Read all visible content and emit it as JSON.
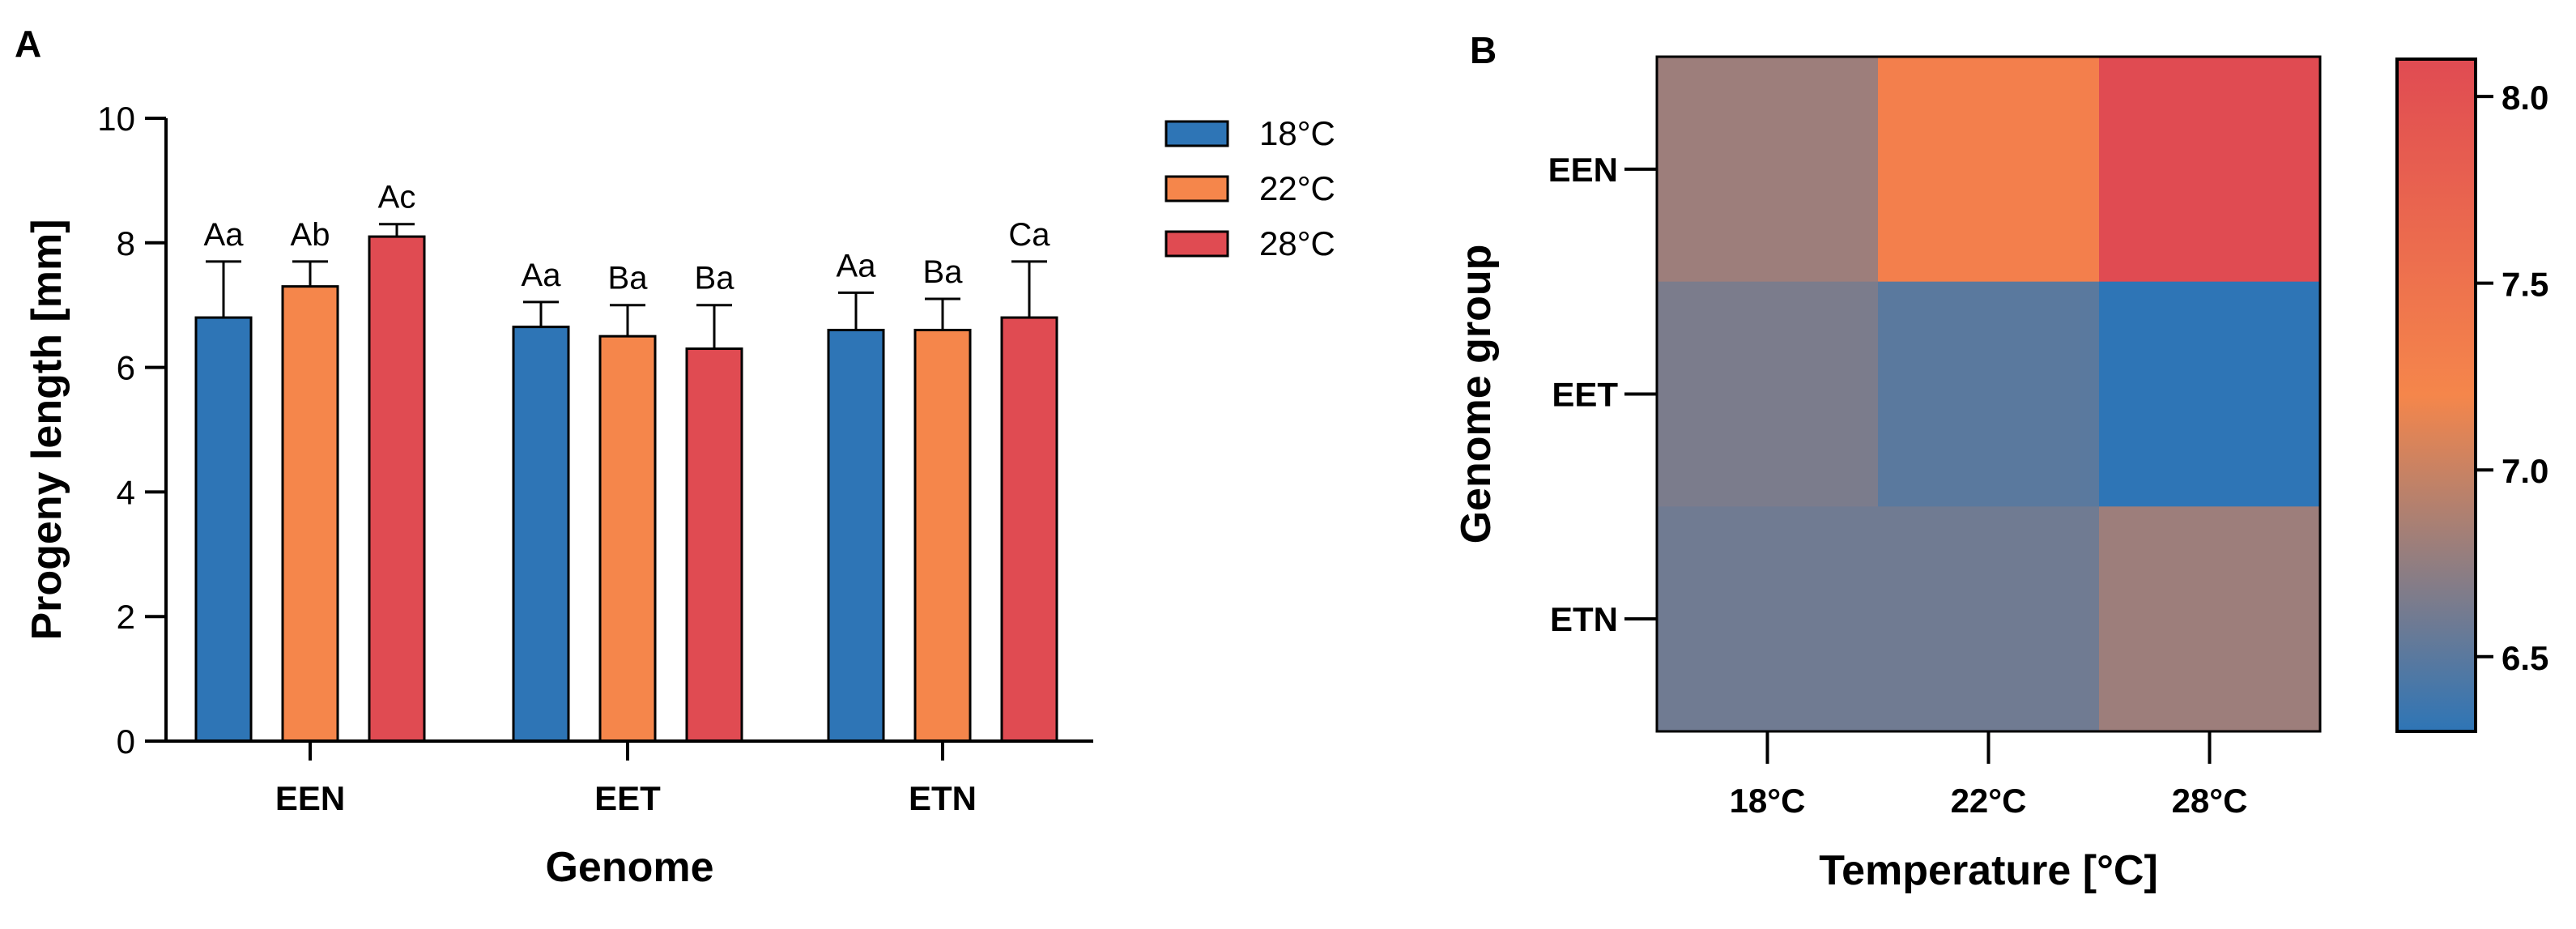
{
  "panels": {
    "a": {
      "label": "A"
    },
    "b": {
      "label": "B"
    }
  },
  "chart_data": [
    {
      "type": "bar",
      "panel": "A",
      "title": "",
      "xlabel": "Genome",
      "ylabel": "Progeny length [mm]",
      "ylim": [
        0,
        10
      ],
      "yticks": [
        0,
        2,
        4,
        6,
        8,
        10
      ],
      "categories": [
        "EEN",
        "EET",
        "ETN"
      ],
      "legend_position": "top-right",
      "series": [
        {
          "name": "18°C",
          "color": "#2e75b6",
          "values": [
            6.8,
            6.65,
            6.6
          ],
          "errors": [
            0.9,
            0.4,
            0.6
          ],
          "labels": [
            "Aa",
            "Aa",
            "Aa"
          ]
        },
        {
          "name": "22°C",
          "color": "#f5864b",
          "values": [
            7.3,
            6.5,
            6.6
          ],
          "errors": [
            0.4,
            0.5,
            0.5
          ],
          "labels": [
            "Ab",
            "Ba",
            "Ba"
          ]
        },
        {
          "name": "28°C",
          "color": "#e04b52",
          "values": [
            8.1,
            6.3,
            6.8
          ],
          "errors": [
            0.2,
            0.7,
            0.9
          ],
          "labels": [
            "Ac",
            "Ba",
            "Ca"
          ]
        }
      ]
    },
    {
      "type": "heatmap",
      "panel": "B",
      "title": "",
      "xlabel": "Temperature [°C]",
      "ylabel": "Genome group",
      "x": [
        "18°C",
        "22°C",
        "28°C"
      ],
      "y": [
        "EEN",
        "EET",
        "ETN"
      ],
      "values": [
        [
          6.8,
          7.3,
          8.1
        ],
        [
          6.65,
          6.5,
          6.3
        ],
        [
          6.6,
          6.6,
          6.8
        ]
      ],
      "colorbar": {
        "range": [
          6.3,
          8.1
        ],
        "ticks": [
          6.5,
          7.0,
          7.5,
          8.0
        ],
        "tick_labels": [
          "6.5",
          "7.0",
          "7.5",
          "8.0"
        ],
        "colors": [
          "#2e75b6",
          "#f5864b",
          "#e04b52"
        ]
      }
    }
  ]
}
